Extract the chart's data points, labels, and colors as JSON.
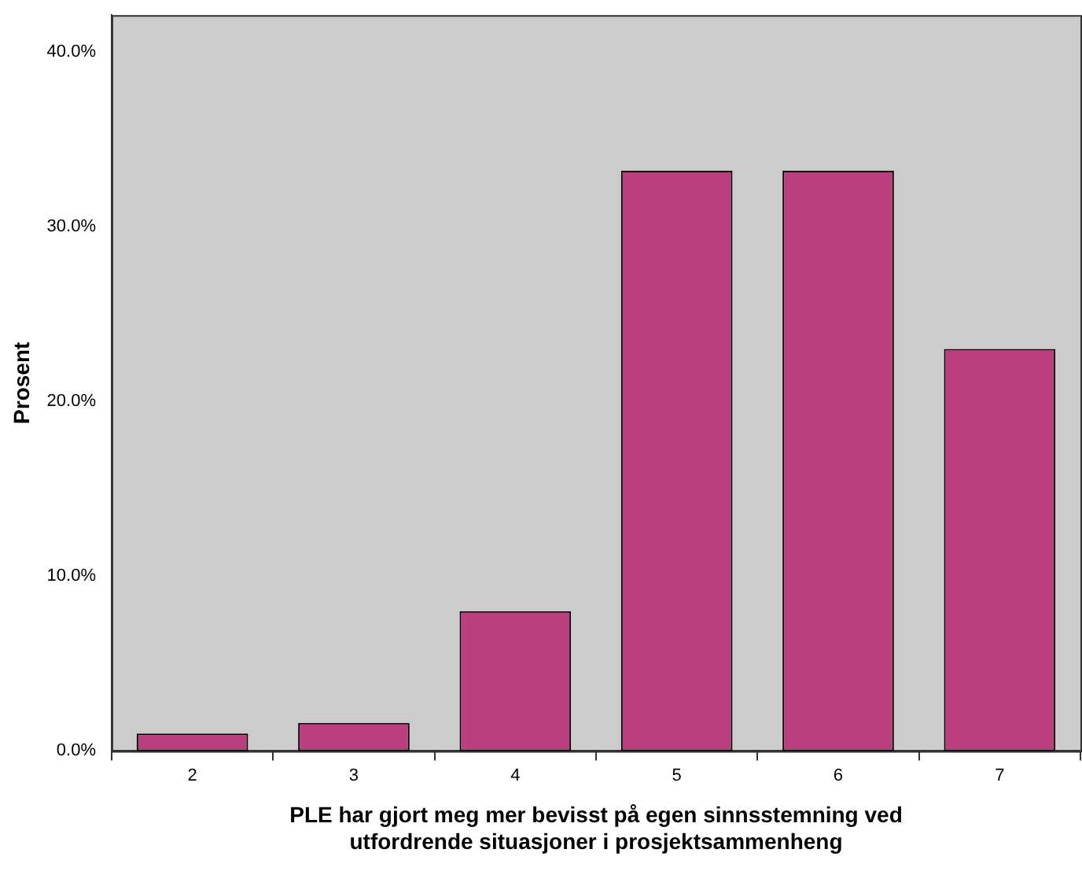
{
  "chart_data": {
    "type": "bar",
    "xlabel": "PLE har gjort meg mer bevisst på egen sinnsstemning ved utfordrende situasjoner i prosjektsammenheng",
    "ylabel": "Prosent",
    "categories": [
      "2",
      "3",
      "4",
      "5",
      "6",
      "7"
    ],
    "values": [
      1.0,
      1.6,
      8.0,
      33.2,
      33.2,
      23.0
    ],
    "color": "#bb3f7f",
    "ylim": [
      0,
      42.1
    ],
    "yticks": [
      {
        "value": 0,
        "label": "0.0%"
      },
      {
        "value": 10,
        "label": "10.0%"
      },
      {
        "value": 20,
        "label": "20.0%"
      },
      {
        "value": 30,
        "label": "30.0%"
      },
      {
        "value": 40,
        "label": "40.0%"
      }
    ],
    "grid": false,
    "legend": false
  }
}
